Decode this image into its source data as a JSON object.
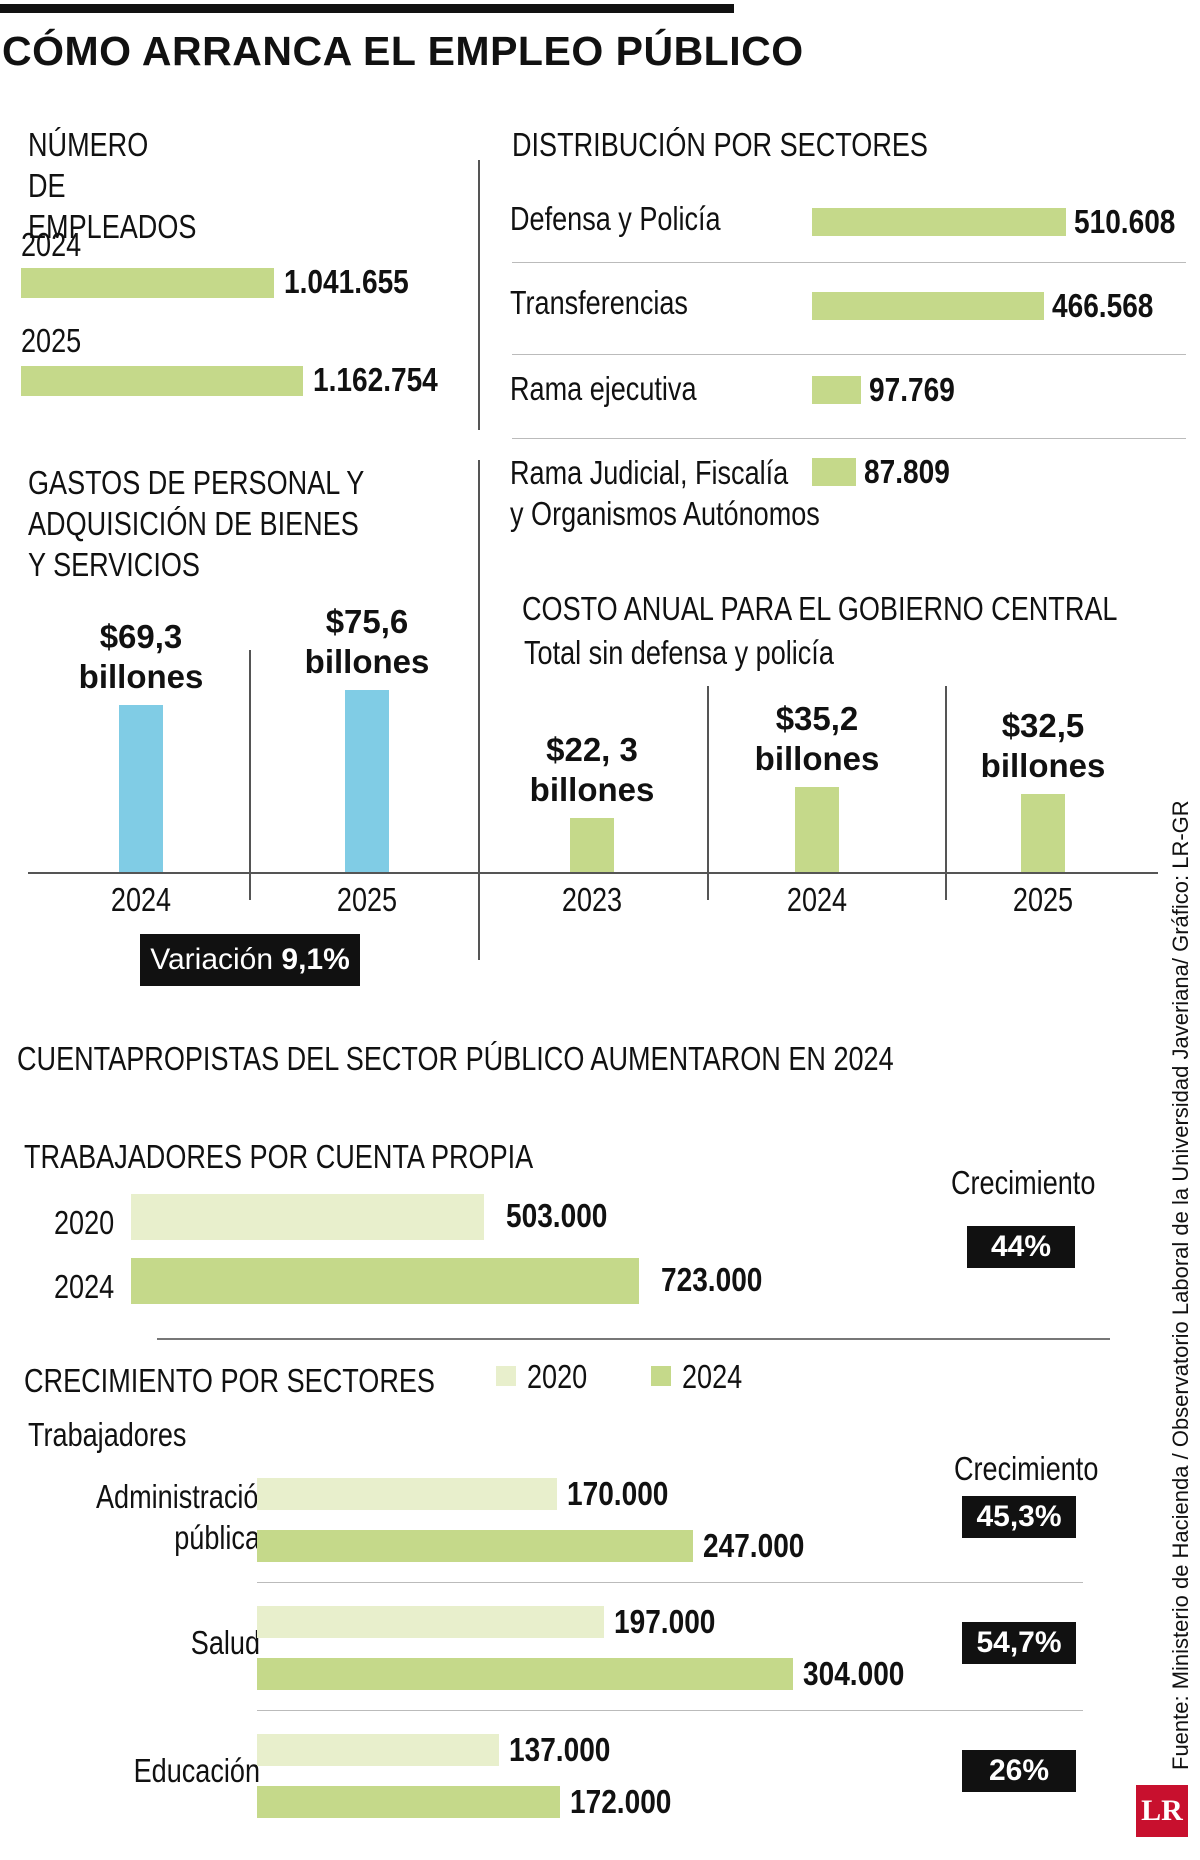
{
  "title": "CÓMO ARRANCA EL EMPLEO PÚBLICO",
  "source": "Fuente: Ministerio de Hacienda / Observatorio Laboral de la Universidad Javeriana/ Gráfico: LR-GR",
  "logo": "LR",
  "colors": {
    "green": "#c5d98a",
    "light_green": "#e8efcc",
    "blue": "#80cce5",
    "black": "#111111"
  },
  "chart_data": [
    {
      "type": "bar",
      "title": "NÚMERO DE EMPLEADOS",
      "categories": [
        "2024",
        "2025"
      ],
      "values": [
        1041655,
        1162754
      ],
      "value_labels": [
        "1.041.655",
        "1.162.754"
      ]
    },
    {
      "type": "bar",
      "title": "DISTRIBUCIÓN POR SECTORES",
      "categories": [
        "Defensa y Policía",
        "Transferencias",
        "Rama ejecutiva",
        "Rama Judicial, Fiscalía y Organismos Autónomos"
      ],
      "category_lines": [
        [
          "Defensa y Policía"
        ],
        [
          "Transferencias"
        ],
        [
          "Rama ejecutiva"
        ],
        [
          "Rama Judicial, Fiscalía",
          "y Organismos Autónomos"
        ]
      ],
      "values": [
        510608,
        466568,
        97769,
        87809
      ],
      "value_labels": [
        "510.608",
        "466.568",
        "97.769",
        "87.809"
      ]
    },
    {
      "type": "bar",
      "title": "GASTOS DE PERSONAL Y ADQUISICIÓN DE BIENES Y SERVICIOS",
      "title_lines": [
        "GASTOS DE PERSONAL Y",
        "ADQUISICIÓN DE BIENES",
        "Y SERVICIOS"
      ],
      "categories": [
        "2024",
        "2025"
      ],
      "values": [
        69.3,
        75.6
      ],
      "value_labels": [
        "$69,3\nbillones",
        "$75,6\nbillones"
      ],
      "variation_label": "Variación",
      "variation_value": "9,1%"
    },
    {
      "type": "bar",
      "title": "COSTO ANUAL PARA EL GOBIERNO CENTRAL",
      "subtitle": "Total sin defensa y policía",
      "categories": [
        "2023",
        "2024",
        "2025"
      ],
      "values": [
        22.3,
        35.2,
        32.5
      ],
      "value_labels": [
        "$22, 3\nbillones",
        "$35,2\nbillones",
        "$32,5\nbillones"
      ]
    },
    {
      "type": "bar",
      "title": "CUENTAPROPISTAS DEL SECTOR PÚBLICO AUMENTARON EN 2024",
      "subtitle": "TRABAJADORES POR CUENTA PROPIA",
      "categories": [
        "2020",
        "2024"
      ],
      "values": [
        503000,
        723000
      ],
      "value_labels": [
        "503.000",
        "723.000"
      ],
      "growth_label": "Crecimiento",
      "growth": "44%"
    },
    {
      "type": "bar",
      "title": "CRECIMIENTO POR SECTORES",
      "subtitle": "Trabajadores",
      "growth_label": "Crecimiento",
      "legend": [
        "2020",
        "2024"
      ],
      "categories": [
        "Administración pública",
        "Salud",
        "Educación"
      ],
      "category_lines": [
        [
          "Administración",
          "pública"
        ],
        [
          "Salud"
        ],
        [
          "Educación"
        ]
      ],
      "series": [
        {
          "name": "2020",
          "values": [
            170000,
            197000,
            137000
          ],
          "value_labels": [
            "170.000",
            "197.000",
            "137.000"
          ]
        },
        {
          "name": "2024",
          "values": [
            247000,
            304000,
            172000
          ],
          "value_labels": [
            "247.000",
            "304.000",
            "172.000"
          ]
        }
      ],
      "growth": [
        "45,3%",
        "54,7%",
        "26%"
      ]
    }
  ]
}
